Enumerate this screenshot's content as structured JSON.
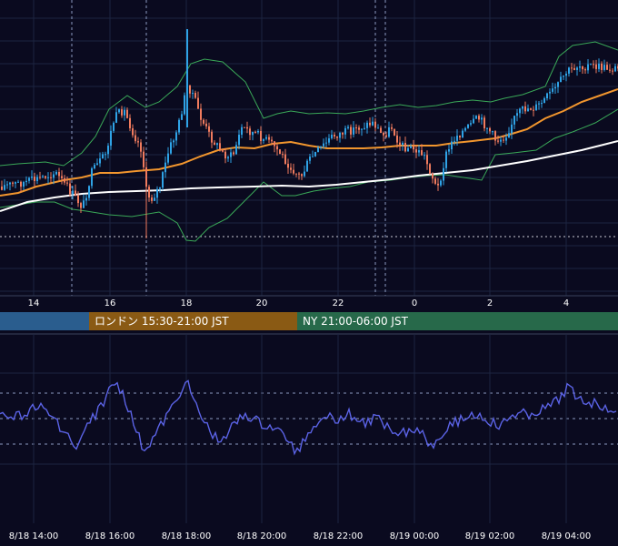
{
  "chart_data": [
    {
      "type": "candlestick",
      "title": "",
      "x_ticks": [
        "14",
        "16",
        "18",
        "20",
        "22",
        "0",
        "2",
        "4"
      ],
      "indicators": [
        "bollinger-bands",
        "moving-average-orange",
        "moving-average-white"
      ],
      "colors": {
        "up": "#2fa3e6",
        "down": "#f07b5e",
        "bb": "#3aa858",
        "ma_short": "#f2962e",
        "ma_long": "#ffffff",
        "grid": "#1c2440"
      },
      "sessions": [
        {
          "label": "",
          "color": "#2a5d8e"
        },
        {
          "label": "ロンドン 15:30-21:00 JST",
          "color": "#8a5a14"
        },
        {
          "label": "NY 21:00-06:00 JST",
          "color": "#27694a"
        }
      ]
    },
    {
      "type": "line",
      "series": [
        {
          "color": "#5b63e6"
        }
      ],
      "x_ticks": [
        "8/18 14:00",
        "8/18 16:00",
        "8/18 18:00",
        "8/18 20:00",
        "8/18 22:00",
        "8/19 00:00",
        "8/19 02:00",
        "8/19 04:00"
      ]
    }
  ]
}
